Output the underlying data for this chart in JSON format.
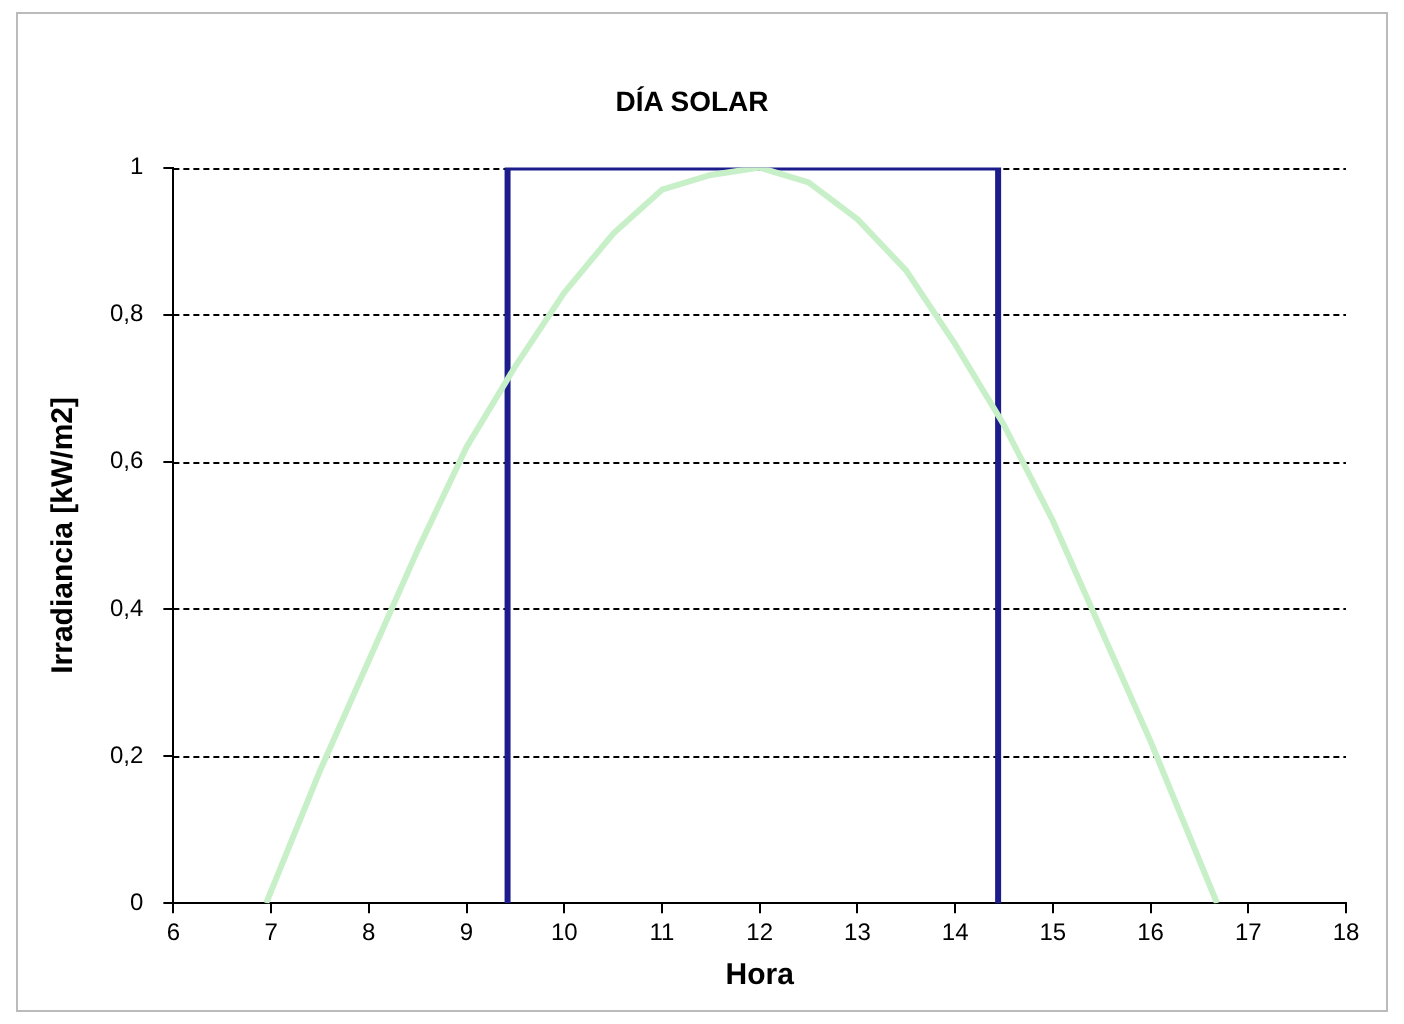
{
  "chart_data": {
    "type": "line",
    "title": "DÍA SOLAR",
    "xlabel": "Hora",
    "ylabel": "Irradiancia [kW/m2]",
    "series": [
      {
        "color": "#c8f0c8",
        "x": [
          6.95,
          7.5,
          8,
          8.5,
          9,
          9.5,
          10,
          10.5,
          11,
          11.5,
          12,
          12.5,
          13,
          13.5,
          14,
          14.5,
          15,
          15.5,
          16,
          16.68
        ],
        "values": [
          0,
          0.18,
          0.33,
          0.48,
          0.62,
          0.73,
          0.83,
          0.91,
          0.97,
          0.99,
          1,
          0.98,
          0.93,
          0.86,
          0.76,
          0.65,
          0.52,
          0.37,
          0.22,
          0
        ]
      },
      {
        "color": "#1c1c8c",
        "x": [
          9.42,
          9.42,
          14.44,
          14.44
        ],
        "values": [
          0,
          1,
          1,
          0
        ]
      }
    ],
    "xlim": [
      6,
      18
    ],
    "xticks": [
      6,
      7,
      8,
      9,
      10,
      11,
      12,
      13,
      14,
      15,
      16,
      17,
      18
    ],
    "ylim": [
      0,
      1
    ],
    "yticks": [
      0,
      {
        "value": 0.2,
        "label": "0,2"
      },
      {
        "value": 0.4,
        "label": "0,4"
      },
      {
        "value": 0.6,
        "label": "0,6"
      },
      {
        "value": 0.8,
        "label": "0,8"
      },
      1
    ],
    "grid": "y",
    "legend": false,
    "marker": "none"
  }
}
